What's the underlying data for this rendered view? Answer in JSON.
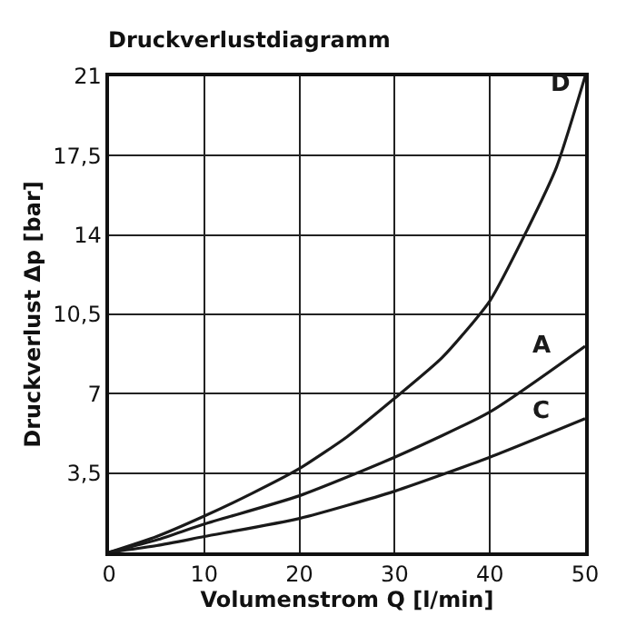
{
  "chart_data": {
    "type": "line",
    "title": "Druckverlustdiagramm",
    "xlabel": "Volumenstrom Q [l/min]",
    "ylabel": "Druckverlust Δp [bar]",
    "xlim": [
      0,
      50
    ],
    "xticks": [
      0,
      10,
      20,
      30,
      40,
      50
    ],
    "ylim": [
      0,
      21
    ],
    "yticks": [
      {
        "value": 0,
        "label": null
      },
      {
        "value": 3.5,
        "label": "3,5"
      },
      7,
      {
        "value": 10.5,
        "label": "10,5"
      },
      14,
      {
        "value": 17.5,
        "label": "17,5"
      },
      21
    ],
    "grid": true,
    "legend": false,
    "marker": "none",
    "line_style": "solid",
    "series": [
      {
        "name": "D",
        "color": "#1a1a1a",
        "x": [
          0,
          5,
          10,
          15,
          20,
          25,
          30,
          35,
          40,
          44,
          47,
          50
        ],
        "values": [
          0,
          0.7,
          1.6,
          2.6,
          3.7,
          5.1,
          6.8,
          8.6,
          11.1,
          14.3,
          17,
          21
        ]
      },
      {
        "name": "A",
        "color": "#1a1a1a",
        "x": [
          0,
          5,
          10,
          20,
          30,
          40,
          50
        ],
        "values": [
          0,
          0.55,
          1.25,
          2.5,
          4.2,
          6.2,
          9.1
        ]
      },
      {
        "name": "C",
        "color": "#1a1a1a",
        "x": [
          0,
          5,
          10,
          20,
          30,
          40,
          50
        ],
        "values": [
          0,
          0.3,
          0.7,
          1.5,
          2.7,
          4.2,
          5.9
        ]
      }
    ]
  }
}
